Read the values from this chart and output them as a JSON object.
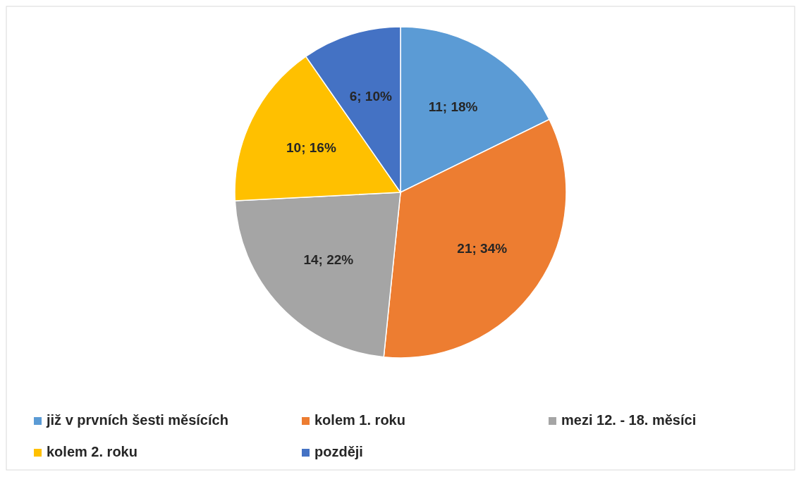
{
  "chart_data": {
    "type": "pie",
    "categories": [
      "již v prvních šesti měsících",
      "kolem 1. roku",
      "mezi 12. - 18. měsíci",
      "kolem 2. roku",
      "později"
    ],
    "values": [
      11,
      21,
      14,
      10,
      6
    ],
    "colors": [
      "#5b9bd5",
      "#ed7d31",
      "#a5a5a5",
      "#ffc000",
      "#4472c4"
    ],
    "value_labels": [
      "11; 18%",
      "21; 34%",
      "14; 22%",
      "10; 16%",
      "6; 10%"
    ],
    "legend": "bottom"
  }
}
